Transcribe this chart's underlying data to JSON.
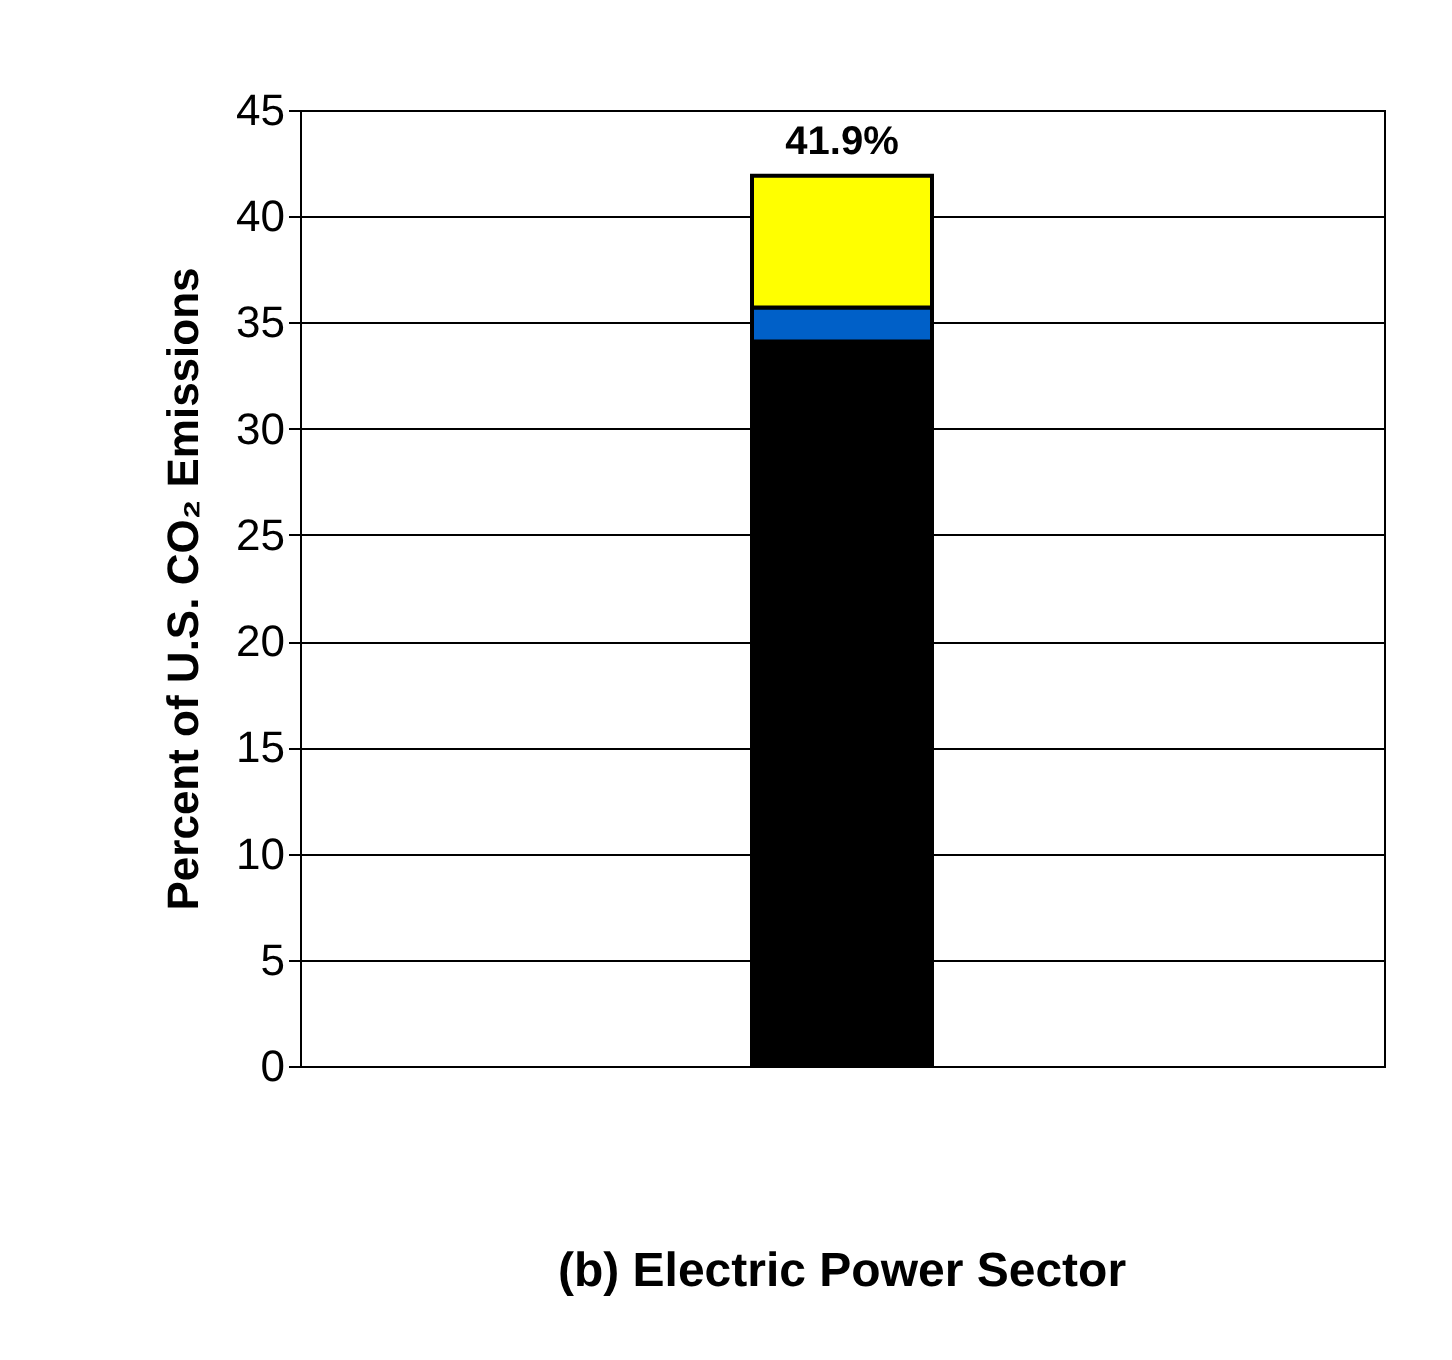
{
  "chart_data": {
    "type": "bar",
    "stacked": true,
    "title": "(b)  Electric Power Sector",
    "ylabel": "Percent of U.S. CO₂ Emissions",
    "categories": [
      null
    ],
    "series": [
      {
        "color": "#000000",
        "values": [
          34.1
        ]
      },
      {
        "color": "#0060c8",
        "values": [
          1.6
        ]
      },
      {
        "color": "#ffff00",
        "values": [
          6.2
        ]
      }
    ],
    "totals": [
      "41.9%"
    ],
    "ylim": [
      0,
      45
    ],
    "yticks": [
      0,
      5,
      10,
      15,
      20,
      25,
      30,
      35,
      40,
      45
    ],
    "grid": "y"
  }
}
